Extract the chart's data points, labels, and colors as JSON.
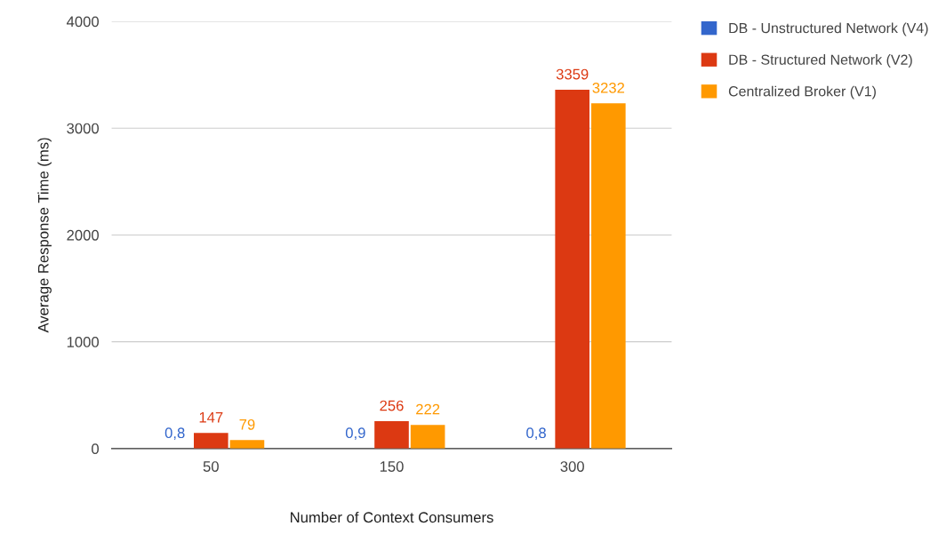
{
  "chart_data": {
    "type": "bar",
    "xlabel": "Number of Context Consumers",
    "ylabel": "Average Response Time (ms)",
    "categories": [
      "50",
      "150",
      "300"
    ],
    "series": [
      {
        "name": "DB - Unstructured Network (V4)",
        "color": "#3366cc",
        "values": [
          0.8,
          0.9,
          0.8
        ],
        "value_labels": [
          "0,8",
          "0,9",
          "0,8"
        ]
      },
      {
        "name": "DB - Structured Network (V2)",
        "color": "#dc3912",
        "values": [
          147,
          256,
          3359
        ],
        "value_labels": [
          "147",
          "256",
          "3359"
        ]
      },
      {
        "name": "Centralized Broker (V1)",
        "color": "#ff9900",
        "values": [
          79,
          222,
          3232
        ],
        "value_labels": [
          "79",
          "222",
          "3232"
        ]
      }
    ],
    "ylim": [
      0,
      4000
    ],
    "yticks": [
      0,
      1000,
      2000,
      3000,
      4000
    ],
    "grid": "y",
    "legend": "top right"
  }
}
